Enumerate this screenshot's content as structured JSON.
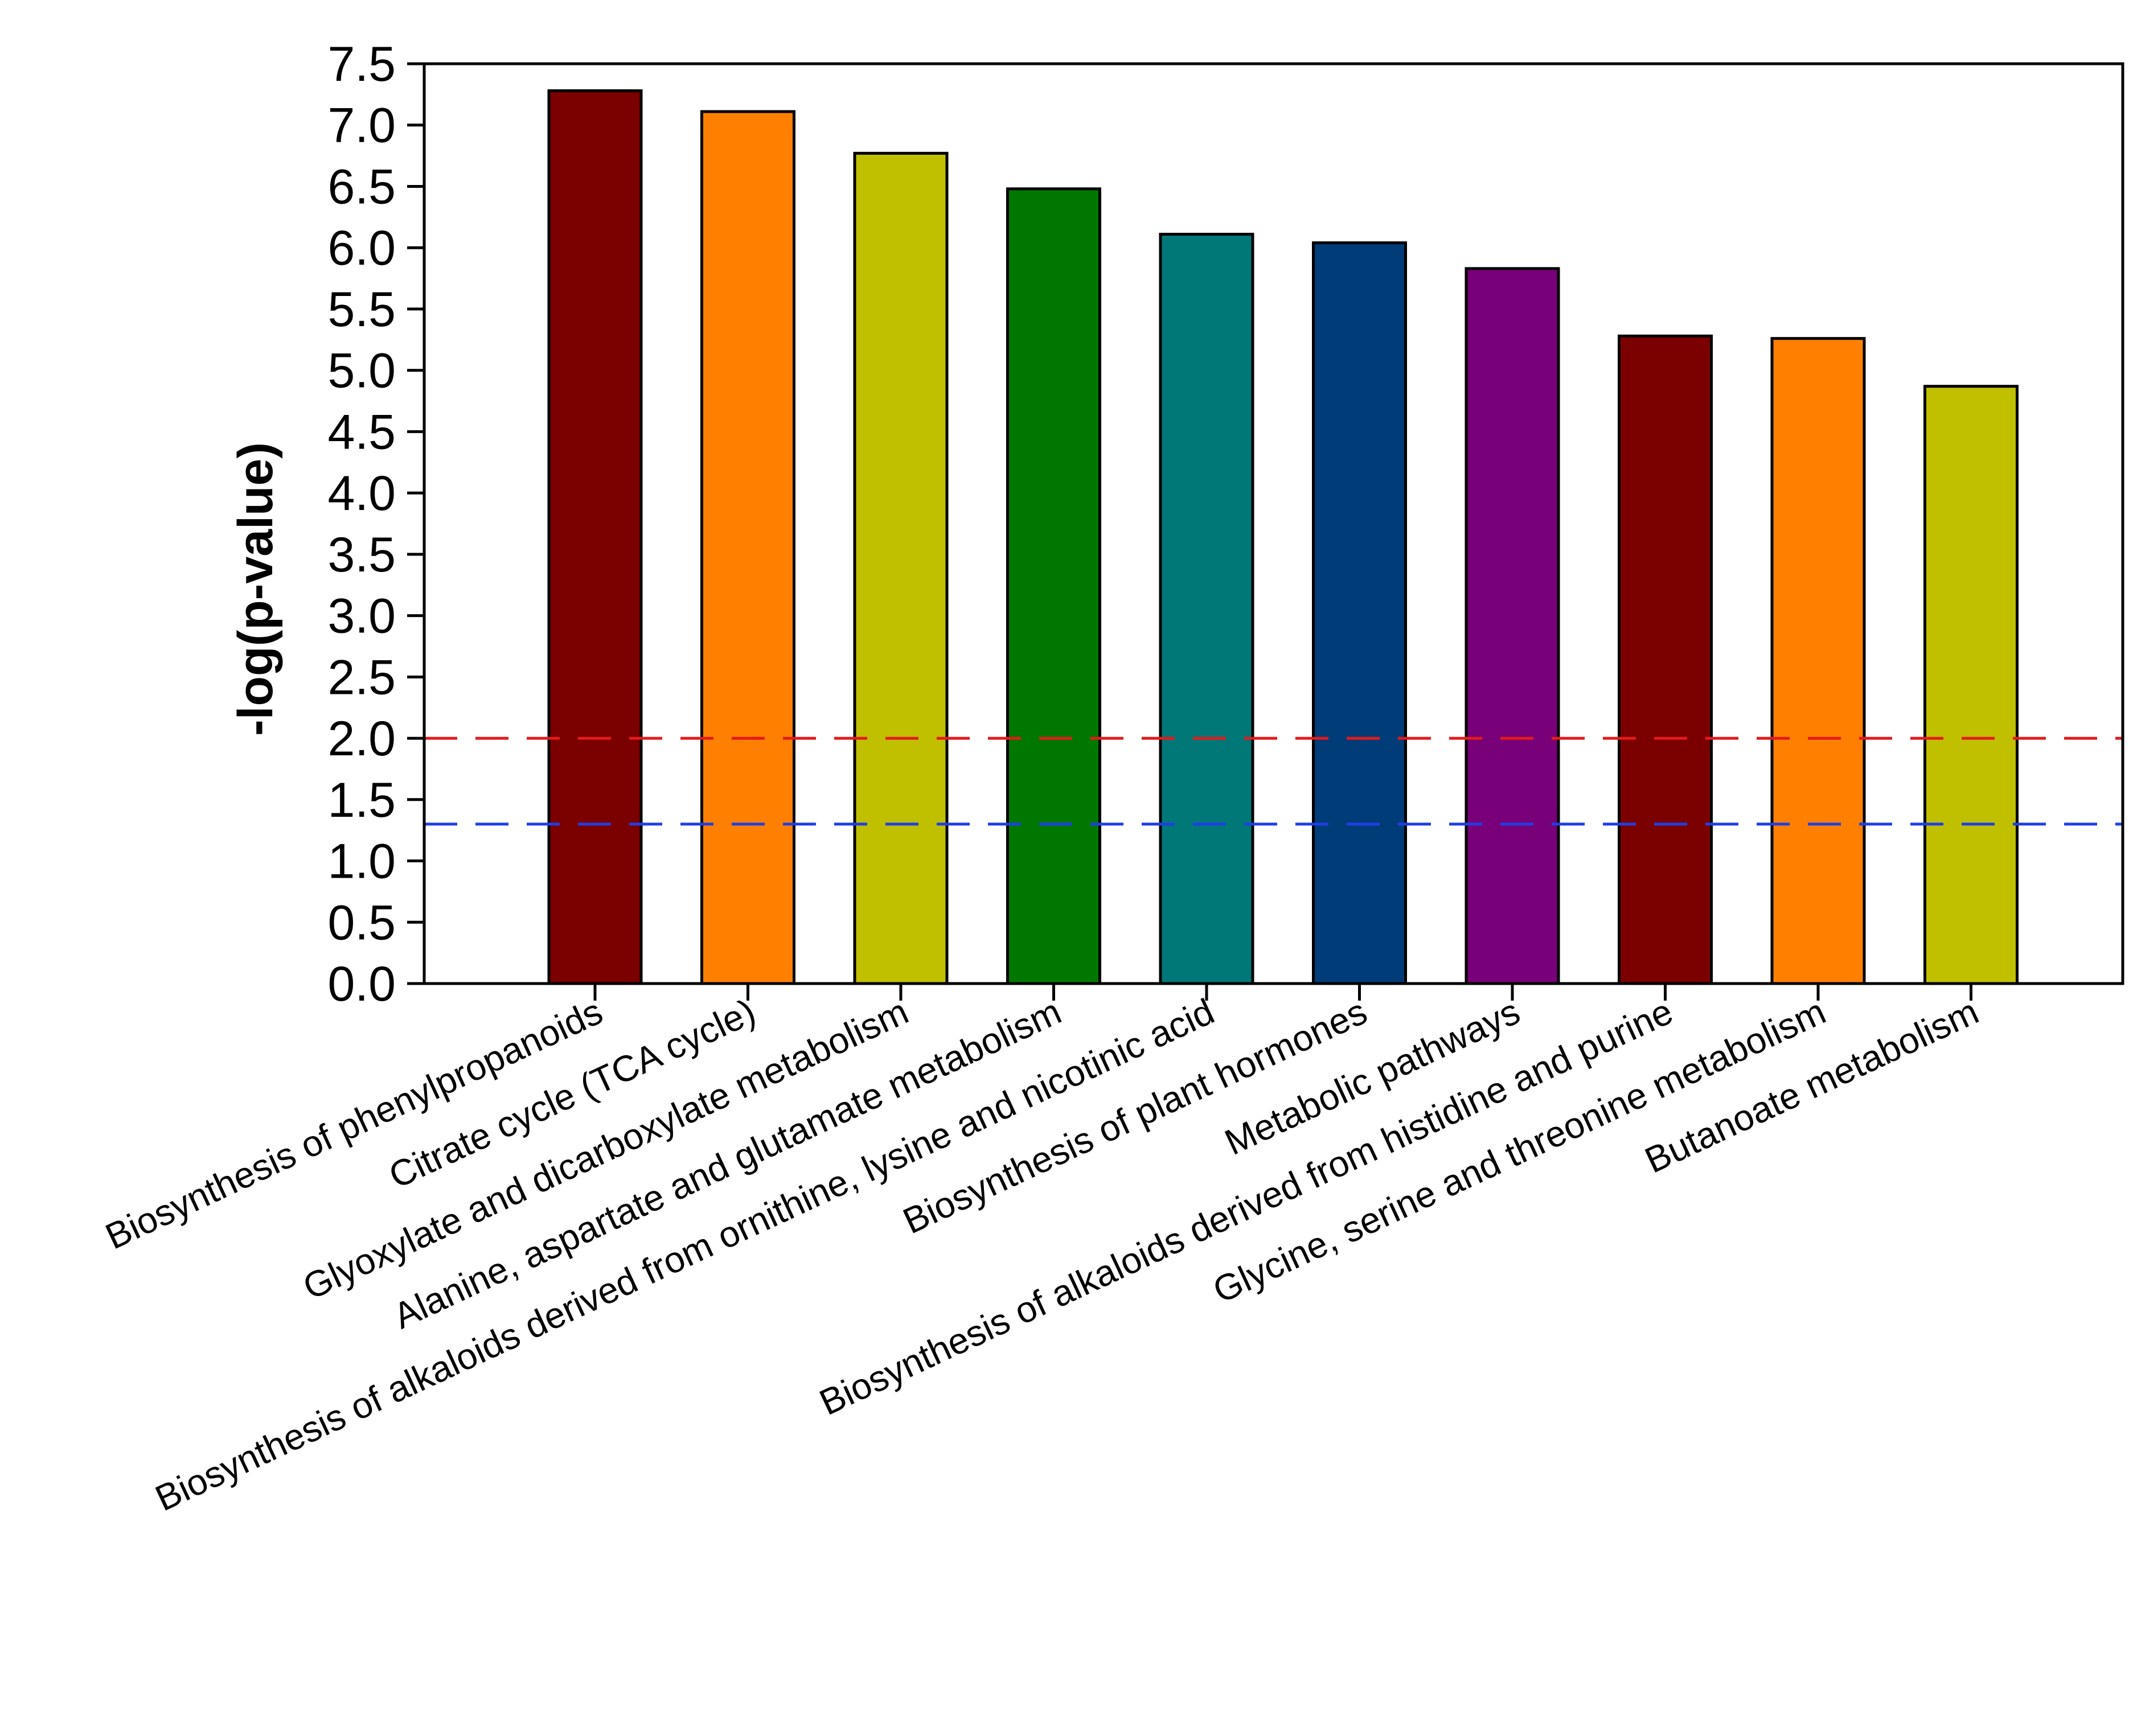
{
  "chart_data": {
    "type": "bar",
    "title": "",
    "xlabel": "",
    "ylabel": "-log(p-value)",
    "ylim": [
      0,
      7.5
    ],
    "yticks": [
      "0.0",
      "0.5",
      "1.0",
      "1.5",
      "2.0",
      "2.5",
      "3.0",
      "3.5",
      "4.0",
      "4.5",
      "5.0",
      "5.5",
      "6.0",
      "6.5",
      "7.0",
      "7.5"
    ],
    "grid": false,
    "categories": [
      "Biosynthesis of phenylpropanoids",
      "Citrate cycle (TCA cycle)",
      "Glyoxylate and dicarboxylate metabolism",
      "Alanine, aspartate and glutamate metabolism",
      "Biosynthesis of alkaloids derived from ornithine, lysine and nicotinic acid",
      "Biosynthesis of plant hormones",
      "Metabolic pathways",
      "Biosynthesis of alkaloids derived from histidine and purine",
      "Glycine, serine and threonine metabolism",
      "Butanoate metabolism"
    ],
    "values": [
      7.28,
      7.11,
      6.77,
      6.48,
      6.11,
      6.04,
      5.83,
      5.28,
      5.26,
      4.87
    ],
    "colors": [
      "#7b0000",
      "#ff8000",
      "#c0c000",
      "#007800",
      "#007878",
      "#003c78",
      "#780078",
      "#7b0000",
      "#ff8000",
      "#c0c000"
    ],
    "reference_lines": [
      {
        "value": 2.0,
        "color": "#e41a1c",
        "style": "dashed"
      },
      {
        "value": 1.3,
        "color": "#1f3fe6",
        "style": "dashed"
      }
    ]
  }
}
